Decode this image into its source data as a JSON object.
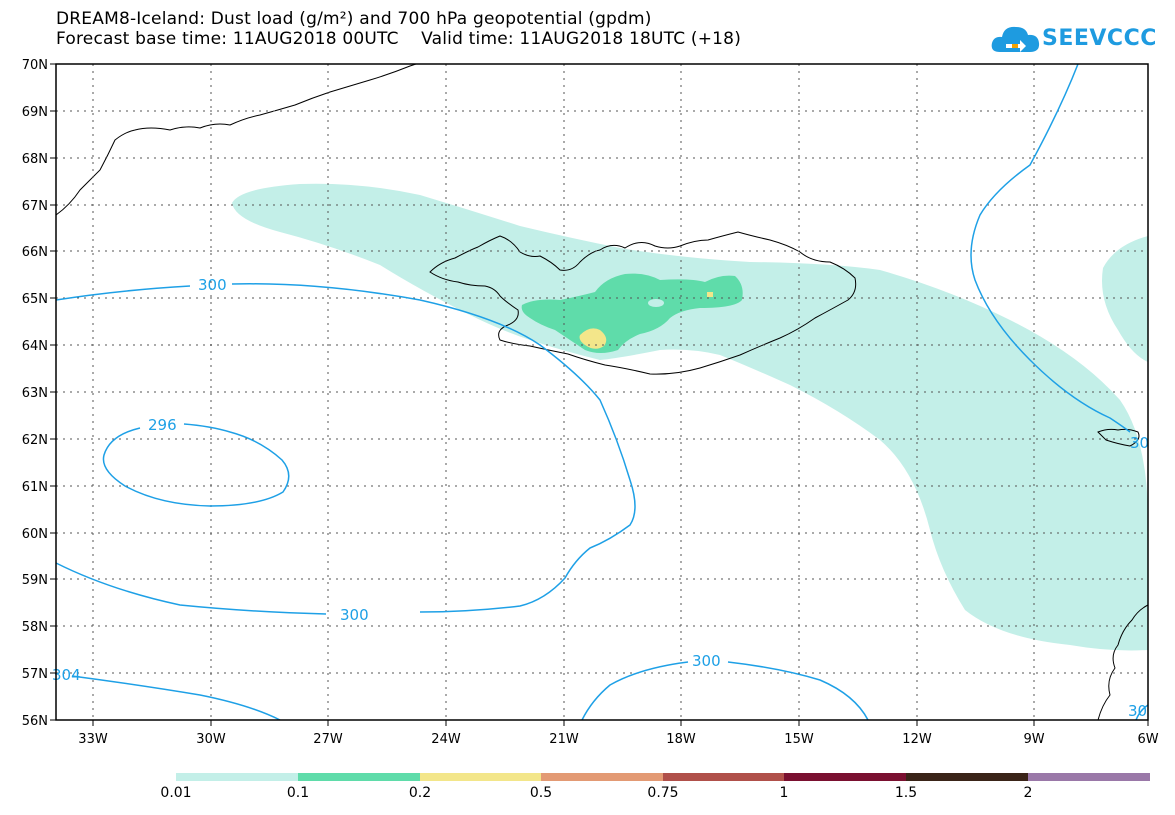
{
  "title": {
    "line1": "DREAM8-Iceland: Dust load (g/m²) and 700 hPa geopotential (gpdm)",
    "line2": "Forecast base time: 11AUG2018 00UTC    Valid time: 11AUG2018 18UTC (+18)"
  },
  "logo": {
    "text": "SEEVCCC",
    "icon": "cloud-icon",
    "color": "#1e9be0"
  },
  "map": {
    "lon_range": [
      -34.3,
      -6
    ],
    "lat_range": [
      56,
      70
    ],
    "grid": "dotted",
    "y_ticks": [
      "70N",
      "69N",
      "68N",
      "67N",
      "66N",
      "65N",
      "64N",
      "63N",
      "62N",
      "61N",
      "60N",
      "59N",
      "58N",
      "57N",
      "56N"
    ],
    "x_ticks": [
      "33W",
      "30W",
      "27W",
      "24W",
      "21W",
      "18W",
      "15W",
      "12W",
      "9W",
      "6W"
    ],
    "contour_color": "#1ea0e6",
    "contour_labels": [
      "300",
      "296",
      "300",
      "300",
      "304",
      "30",
      "30"
    ]
  },
  "colorbar": {
    "labels": [
      "0.01",
      "0.1",
      "0.2",
      "0.5",
      "0.75",
      "1",
      "1.5",
      "2"
    ],
    "colors": [
      "#c3efe8",
      "#5fdcaa",
      "#f3e68a",
      "#e39a74",
      "#b0504a",
      "#7a1030",
      "#3a2418",
      "#9a78a8"
    ]
  }
}
